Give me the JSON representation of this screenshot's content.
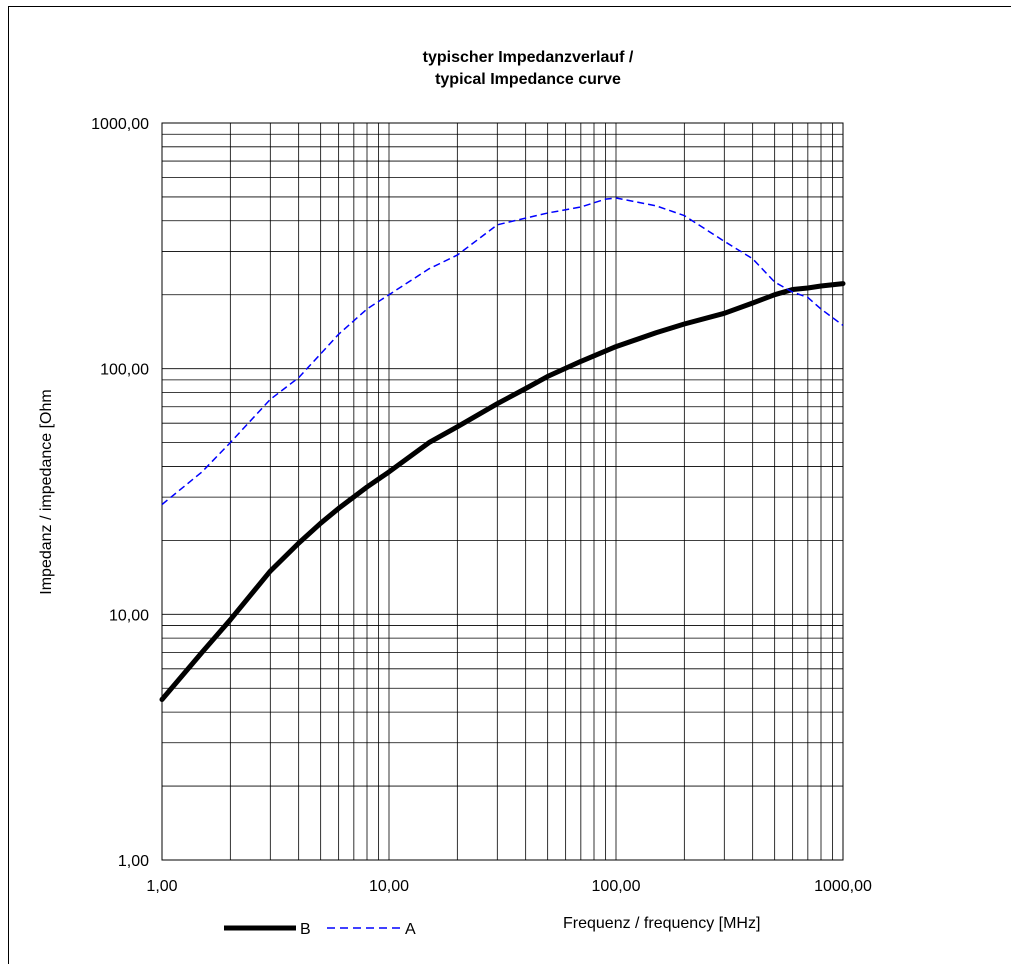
{
  "chart_data": {
    "type": "line",
    "title": [
      "typischer Impedanzverlauf /",
      "typical Impedance curve"
    ],
    "xlabel": "Frequenz / frequency [MHz]",
    "ylabel": "Impedanz / impedance [Ohm",
    "x_scale": "log",
    "y_scale": "log",
    "xlim": [
      1,
      1000
    ],
    "ylim": [
      1,
      1000
    ],
    "x_ticks": [
      1,
      10,
      100,
      1000
    ],
    "x_tick_labels": [
      "1,00",
      "10,00",
      "100,00",
      "1000,00"
    ],
    "y_ticks": [
      1,
      10,
      100,
      1000
    ],
    "y_tick_labels": [
      "1,00",
      "10,00",
      "100,00",
      "1000,00"
    ],
    "grid": true,
    "legend_position": "bottom",
    "series": [
      {
        "name": "B",
        "color": "#000000",
        "style": "solid",
        "x": [
          1,
          1.5,
          2,
          3,
          4,
          5,
          6,
          8,
          10,
          15,
          20,
          30,
          40,
          50,
          70,
          100,
          150,
          200,
          300,
          400,
          500,
          600,
          700,
          800,
          1000
        ],
        "y": [
          4.5,
          7,
          9.5,
          15,
          19.5,
          23.5,
          27,
          33,
          38,
          50,
          58,
          72,
          83,
          93,
          107,
          123,
          140,
          152,
          168,
          185,
          200,
          210,
          213,
          217,
          222
        ]
      },
      {
        "name": "A",
        "color": "#0000ff",
        "style": "dashed",
        "x": [
          1,
          1.5,
          2,
          3,
          4,
          5,
          6,
          8,
          10,
          15,
          20,
          30,
          40,
          50,
          70,
          90,
          100,
          150,
          200,
          300,
          400,
          500,
          600,
          700,
          800,
          1000
        ],
        "y": [
          28,
          38,
          50,
          75,
          92,
          115,
          138,
          175,
          200,
          255,
          290,
          385,
          410,
          430,
          455,
          490,
          495,
          460,
          420,
          330,
          280,
          225,
          205,
          195,
          175,
          150
        ]
      }
    ]
  }
}
